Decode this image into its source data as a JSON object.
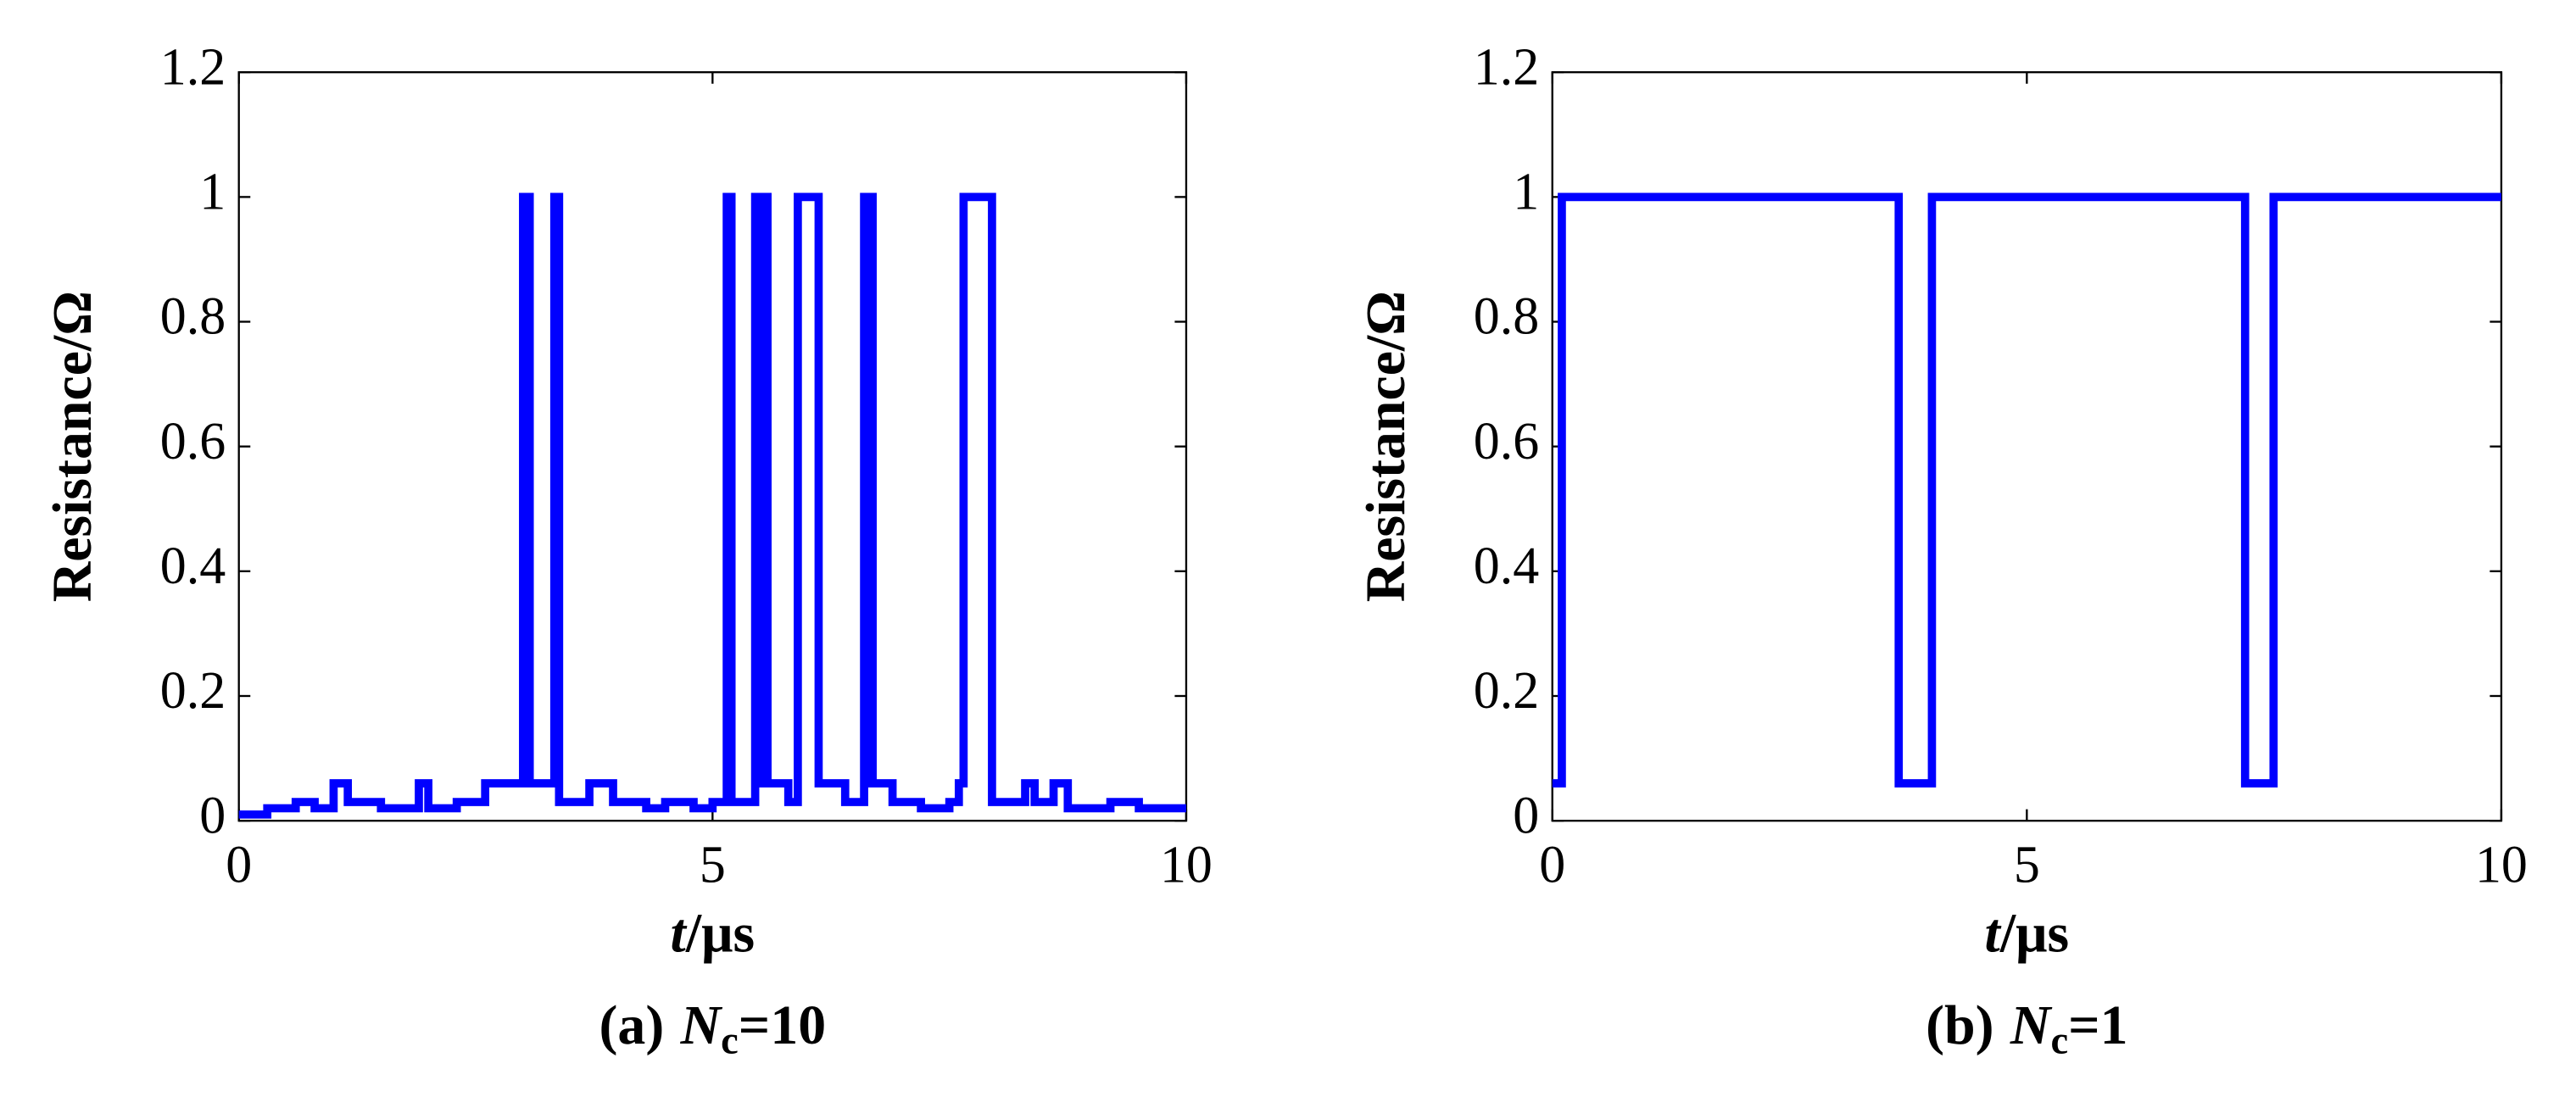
{
  "chart_data": [
    {
      "type": "line",
      "color": "#0000ff",
      "ylabel": "Resistance/Ω",
      "xlabel_symbol": "t",
      "xlabel_unit": "/μs",
      "caption_prefix": "(a)",
      "caption_symbol": "N",
      "caption_subscript": "c",
      "caption_suffix": "=10",
      "xlim": [
        0,
        10
      ],
      "ylim": [
        0,
        1.2
      ],
      "xticks": [
        0,
        5,
        10
      ],
      "yticks": [
        0,
        0.2,
        0.4,
        0.6,
        0.8,
        1,
        1.2
      ],
      "x": [
        0,
        0.3,
        0.3,
        0.6,
        0.6,
        0.8,
        0.8,
        1.0,
        1.0,
        1.15,
        1.15,
        1.5,
        1.5,
        1.9,
        1.9,
        2.0,
        2.0,
        2.3,
        2.3,
        2.6,
        2.6,
        3.0,
        3.0,
        3.07,
        3.07,
        3.33,
        3.33,
        3.38,
        3.38,
        3.7,
        3.7,
        3.95,
        3.95,
        4.3,
        4.3,
        4.5,
        4.5,
        4.8,
        4.8,
        5.0,
        5.0,
        5.15,
        5.15,
        5.2,
        5.2,
        5.45,
        5.45,
        5.48,
        5.48,
        5.5,
        5.5,
        5.58,
        5.58,
        5.8,
        5.8,
        5.9,
        5.9,
        6.12,
        6.12,
        6.4,
        6.4,
        6.6,
        6.6,
        6.63,
        6.63,
        6.65,
        6.65,
        6.69,
        6.69,
        6.9,
        6.9,
        7.2,
        7.2,
        7.5,
        7.5,
        7.6,
        7.6,
        7.65,
        7.65,
        7.95,
        7.95,
        8.3,
        8.3,
        8.4,
        8.4,
        8.6,
        8.6,
        8.75,
        8.75,
        9.2,
        9.2,
        9.5,
        9.5,
        10
      ],
      "values": [
        0.01,
        0.01,
        0.02,
        0.02,
        0.03,
        0.03,
        0.02,
        0.02,
        0.06,
        0.06,
        0.03,
        0.03,
        0.02,
        0.02,
        0.06,
        0.06,
        0.02,
        0.02,
        0.03,
        0.03,
        0.06,
        0.06,
        1,
        1,
        0.06,
        0.06,
        1,
        1,
        0.03,
        0.03,
        0.06,
        0.06,
        0.03,
        0.03,
        0.02,
        0.02,
        0.03,
        0.03,
        0.02,
        0.02,
        0.03,
        0.03,
        1,
        1,
        0.03,
        0.03,
        1,
        1,
        0.06,
        0.06,
        1,
        1,
        0.06,
        0.06,
        0.03,
        0.03,
        1,
        1,
        0.06,
        0.06,
        0.03,
        0.03,
        1,
        1,
        0.06,
        0.06,
        1,
        1,
        0.06,
        0.06,
        0.03,
        0.03,
        0.02,
        0.02,
        0.03,
        0.03,
        0.06,
        0.06,
        1,
        1,
        0.03,
        0.03,
        0.06,
        0.06,
        0.03,
        0.03,
        0.06,
        0.06,
        0.02,
        0.02,
        0.03,
        0.03,
        0.02,
        0.02
      ]
    },
    {
      "type": "line",
      "color": "#0000ff",
      "ylabel": "Resistance/Ω",
      "xlabel_symbol": "t",
      "xlabel_unit": "/μs",
      "caption_prefix": "(b)",
      "caption_symbol": "N",
      "caption_subscript": "c",
      "caption_suffix": "=1",
      "xlim": [
        0,
        10
      ],
      "ylim": [
        0,
        1.2
      ],
      "xticks": [
        0,
        5,
        10
      ],
      "yticks": [
        0,
        0.2,
        0.4,
        0.6,
        0.8,
        1,
        1.2
      ],
      "x": [
        0,
        0.1,
        0.1,
        3.65,
        3.65,
        4.0,
        4.0,
        7.3,
        7.3,
        7.6,
        7.6,
        10
      ],
      "values": [
        0.06,
        0.06,
        1,
        1,
        0.06,
        0.06,
        1,
        1,
        0.06,
        0.06,
        1,
        1
      ]
    }
  ]
}
